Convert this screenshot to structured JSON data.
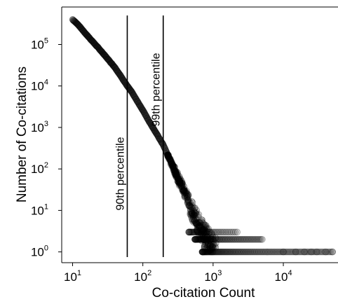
{
  "chart_data": {
    "type": "scatter",
    "xlabel": "Co-citation Count",
    "ylabel": "Number of Co-citations",
    "x_scale": "log",
    "y_scale": "log",
    "xlim": [
      7,
      60000
    ],
    "ylim": [
      0.55,
      800000
    ],
    "grid": false,
    "legend": "none",
    "x_ticks": [
      {
        "value": 10,
        "base": "10",
        "exp": "1"
      },
      {
        "value": 100,
        "base": "10",
        "exp": "2"
      },
      {
        "value": 1000,
        "base": "10",
        "exp": "3"
      },
      {
        "value": 10000,
        "base": "10",
        "exp": "4"
      }
    ],
    "y_ticks": [
      {
        "value": 1,
        "base": "10",
        "exp": "0"
      },
      {
        "value": 10,
        "base": "10",
        "exp": "1"
      },
      {
        "value": 100,
        "base": "10",
        "exp": "2"
      },
      {
        "value": 1000,
        "base": "10",
        "exp": "3"
      },
      {
        "value": 10000,
        "base": "10",
        "exp": "4"
      },
      {
        "value": 100000,
        "base": "10",
        "exp": "5"
      }
    ],
    "annotations": [
      {
        "text": "90th percentile",
        "x": 60,
        "y_from": 0.75,
        "y_to": 500000
      },
      {
        "text": "99th percentile",
        "x": 195,
        "y_from": 0.75,
        "y_to": 500000
      }
    ],
    "series": [
      {
        "marker_color": "#000000",
        "marker_opacity": 0.15,
        "curve_x": [
          10,
          12,
          15,
          20,
          25,
          30,
          40,
          50,
          60,
          70,
          80,
          100,
          120,
          150,
          195,
          250,
          300,
          400,
          500,
          600,
          700,
          800,
          900,
          1000
        ],
        "curve_y": [
          400000,
          300000,
          190000,
          110000,
          72000,
          50000,
          28000,
          16000,
          10000,
          7000,
          4800,
          2600,
          1500,
          800,
          380,
          150,
          75,
          25,
          10,
          5,
          3,
          2,
          1.5,
          1
        ],
        "tail_y1_x_range": [
          700,
          50000
        ],
        "tail_y2_x_range": [
          550,
          5000
        ],
        "tail_y3_x_range": [
          450,
          2200
        ],
        "tail_y1_points_x": [
          10000,
          15000,
          20000,
          25000,
          30000,
          40000,
          50000
        ]
      }
    ]
  }
}
